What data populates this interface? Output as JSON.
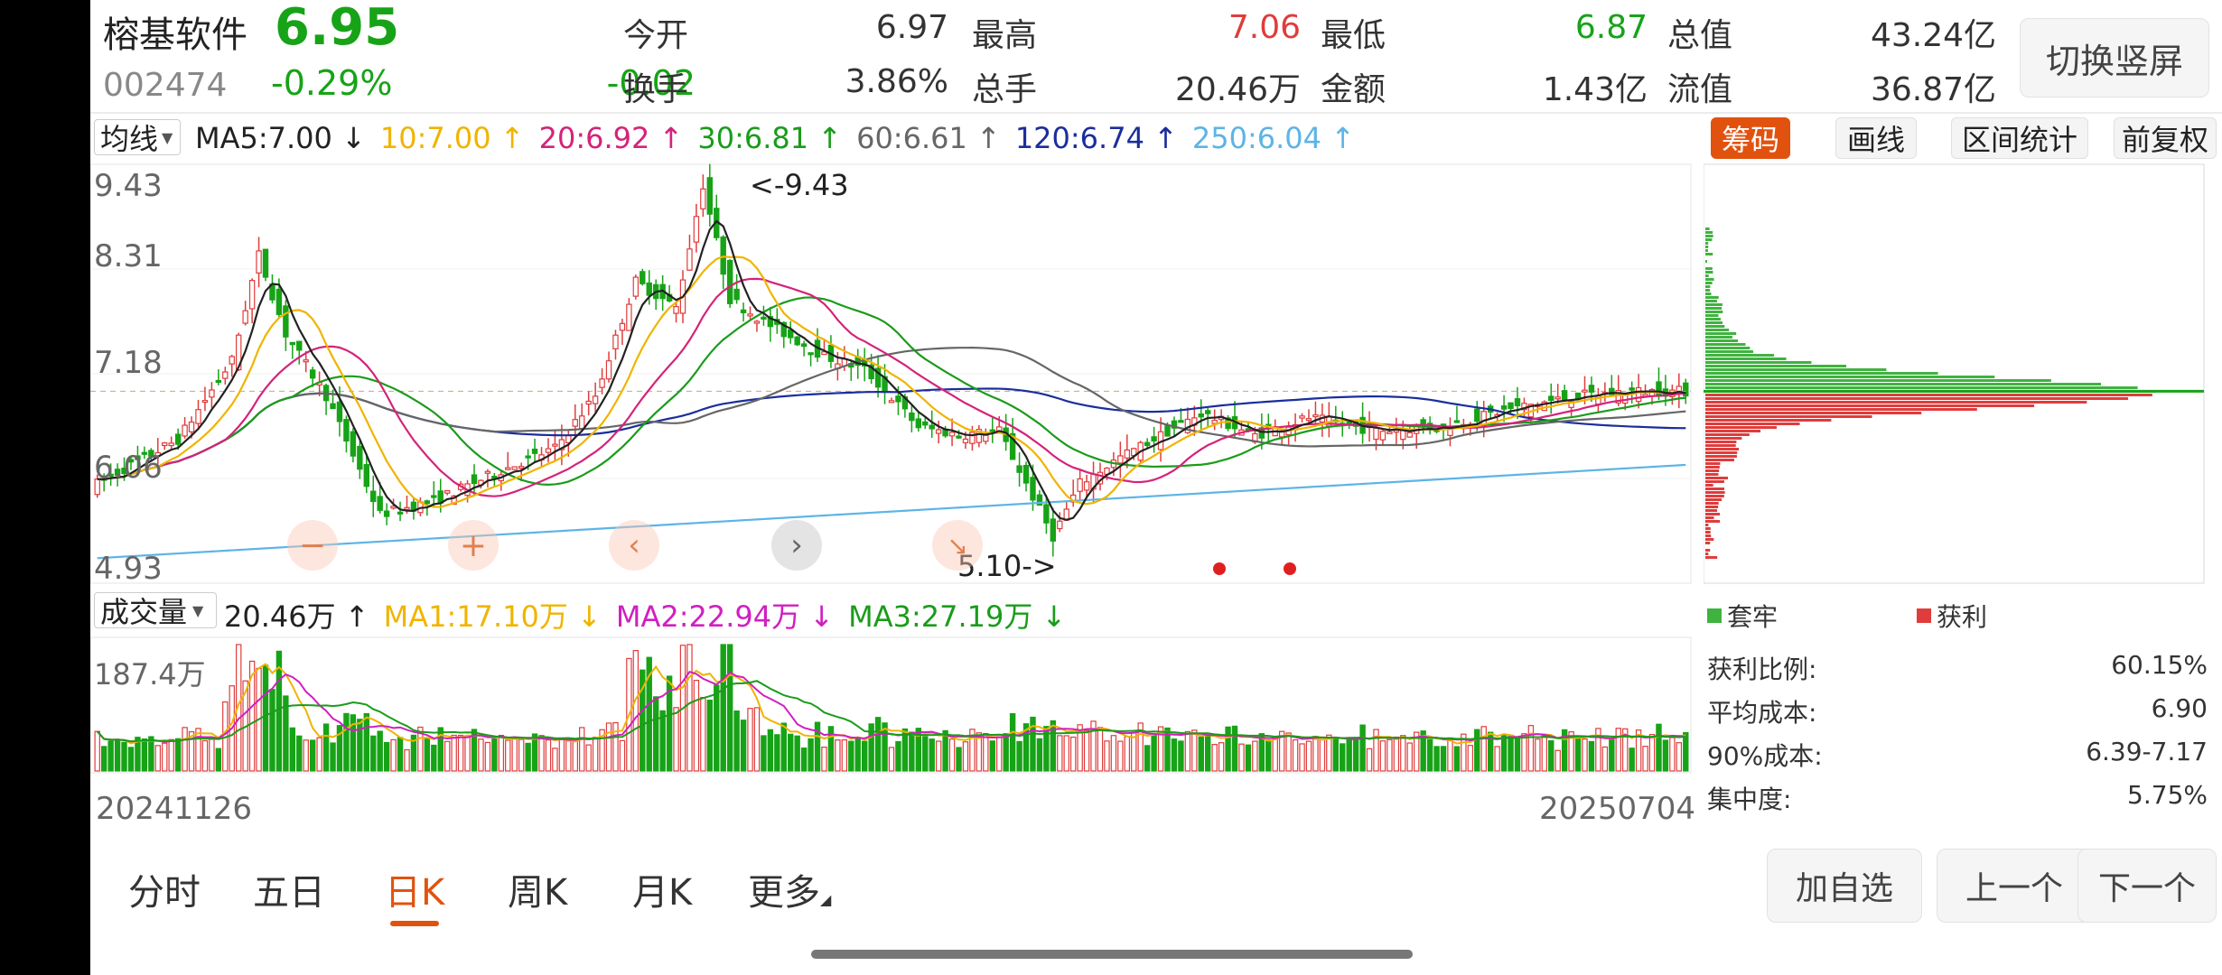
{
  "stock": {
    "name": "榕基软件",
    "price": "6.95",
    "code": "002474",
    "pct": "-0.29%",
    "change": "-0.02",
    "open_label": "今开",
    "open": "6.97",
    "high_label": "最高",
    "high": "7.06",
    "low_label": "最低",
    "low": "6.87",
    "mktcap_label": "总值",
    "mktcap": "43.24亿",
    "turnover_label": "换手",
    "turnover": "3.86%",
    "volume_label": "总手",
    "volume": "20.46万",
    "amount_label": "金额",
    "amount": "1.43亿",
    "float_label": "流值",
    "float": "36.87亿"
  },
  "toggle_label": "切换竖屏",
  "ma_bar": {
    "mode": "均线",
    "items": [
      {
        "text": "MA5:7.00 ↓",
        "color": "#222222"
      },
      {
        "text": "10:7.00 ↑",
        "color": "#f0b400"
      },
      {
        "text": "20:6.92 ↑",
        "color": "#d4237a"
      },
      {
        "text": "30:6.81 ↑",
        "color": "#1a9c1a"
      },
      {
        "text": "60:6.61 ↑",
        "color": "#666666"
      },
      {
        "text": "120:6.74 ↑",
        "color": "#1a2e9c"
      },
      {
        "text": "250:6.04 ↑",
        "color": "#5db4e6"
      }
    ]
  },
  "side_tabs": [
    "筹码",
    "画线",
    "区间统计",
    "前复权"
  ],
  "price_axis": [
    "9.43",
    "8.31",
    "7.18",
    "6.06",
    "4.93"
  ],
  "annotations": {
    "max": "<-9.43",
    "min": "5.10->"
  },
  "vol_bar": {
    "mode": "成交量",
    "items": [
      {
        "text": "20.46万 ↑",
        "color": "#222222"
      },
      {
        "text": "MA1:17.10万 ↓",
        "color": "#f0b400"
      },
      {
        "text": "MA2:22.94万 ↓",
        "color": "#d020c0"
      },
      {
        "text": "MA3:27.19万 ↓",
        "color": "#1a9c1a"
      }
    ]
  },
  "vol_axis": "187.4万",
  "dates": {
    "start": "20241126",
    "end": "20250704"
  },
  "legend": {
    "trapped": "套牢",
    "profit": "获利"
  },
  "chip_stats": [
    {
      "label": "获利比例:",
      "value": "60.15%"
    },
    {
      "label": "平均成本:",
      "value": "6.90"
    },
    {
      "label": "90%成本:",
      "value": "6.39-7.17"
    },
    {
      "label": "集中度:",
      "value": "5.75%"
    }
  ],
  "periods": [
    "分时",
    "五日",
    "日K",
    "周K",
    "月K",
    "更多"
  ],
  "active_period": "日K",
  "bottom_buttons": [
    "加自选",
    "上一个",
    "下一个"
  ],
  "colors": {
    "up": "#e03c3c",
    "down": "#17a317",
    "accent": "#e2520f"
  }
}
